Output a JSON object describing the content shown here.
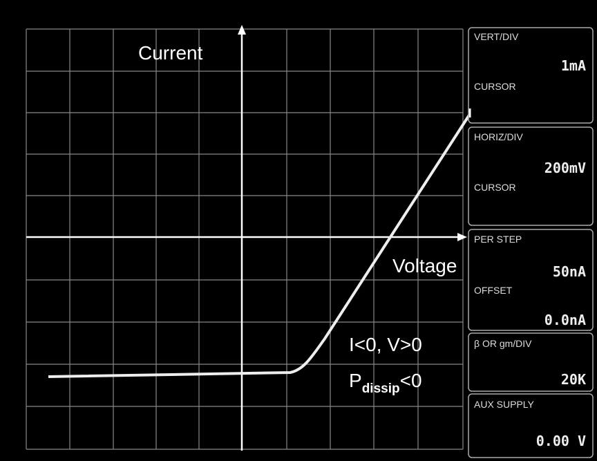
{
  "annotations": {
    "current": "Current",
    "voltage": "Voltage",
    "quadrant": "I<0, V>0",
    "power": {
      "symbol": "P",
      "subscript": "dissip",
      "relation": "<0"
    }
  },
  "panels": [
    {
      "label": "VERT/DIV",
      "value": "1mA",
      "sublabel": "CURSOR"
    },
    {
      "label": "HORIZ/DIV",
      "value": "200mV",
      "sublabel": "CURSOR"
    },
    {
      "label": "PER STEP",
      "value": "50nA",
      "sublabel": "OFFSET",
      "subvalue": "0.0nA"
    },
    {
      "label": "β OR gm/DIV",
      "value": "20K"
    },
    {
      "label": "AUX SUPPLY",
      "value": "0.00 V"
    }
  ]
}
